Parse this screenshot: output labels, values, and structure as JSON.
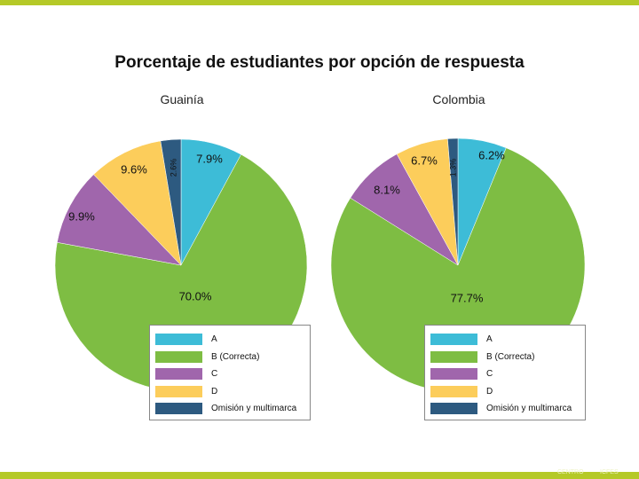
{
  "title": "Porcentaje de estudiantes por opción de respuesta",
  "colors": {
    "A": "#3dbcd7",
    "B": "#7ebd43",
    "C": "#a066ac",
    "D": "#fccd5b",
    "Omision": "#2d5a80",
    "frame": "#b5c928"
  },
  "legend": [
    {
      "key": "A",
      "label": "A"
    },
    {
      "key": "B",
      "label": "B (Correcta)"
    },
    {
      "key": "C",
      "label": "C"
    },
    {
      "key": "D",
      "label": "D"
    },
    {
      "key": "Omision",
      "label": "Omisión y multimarca"
    }
  ],
  "chart_data": [
    {
      "type": "pie",
      "title": "Guainía",
      "categories": [
        "A",
        "B (Correcta)",
        "C",
        "D",
        "Omisión y multimarca"
      ],
      "values": [
        7.9,
        70.0,
        9.9,
        9.6,
        2.6
      ],
      "labels": [
        "7.9%",
        "70.0%",
        "9.9%",
        "9.6%",
        "2.6%"
      ]
    },
    {
      "type": "pie",
      "title": "Colombia",
      "categories": [
        "A",
        "B (Correcta)",
        "C",
        "D",
        "Omisión y multimarca"
      ],
      "values": [
        6.2,
        77.7,
        8.1,
        6.7,
        1.3
      ],
      "labels": [
        "6.2%",
        "77.7%",
        "8.1%",
        "6.7%",
        "1.3%"
      ]
    }
  ],
  "footer": {
    "left": "CENTRO",
    "right": "ICFES"
  }
}
